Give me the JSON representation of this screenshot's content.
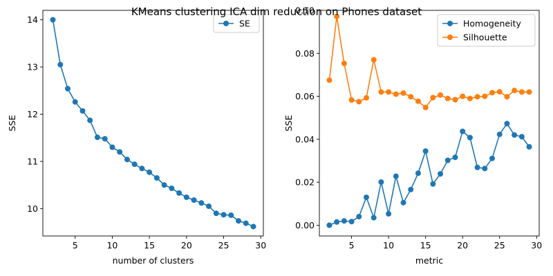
{
  "figure": {
    "title": "KMeans clustering ICA dim reduction on Phones dataset"
  },
  "chart_data": [
    {
      "type": "line",
      "xlabel": "number of clusters",
      "ylabel": "SSE",
      "xlim": [
        0.65,
        30.35
      ],
      "ylim": [
        9.42,
        14.2
      ],
      "xticks": [
        5,
        10,
        15,
        20,
        25,
        30
      ],
      "yticks": [
        10,
        11,
        12,
        13,
        14
      ],
      "legend": "top-right",
      "series": [
        {
          "name": "SE",
          "color": "#1f77b4",
          "marker": "circle",
          "x": [
            2,
            3,
            4,
            5,
            6,
            7,
            8,
            9,
            10,
            11,
            12,
            13,
            14,
            15,
            16,
            17,
            18,
            19,
            20,
            21,
            22,
            23,
            24,
            25,
            26,
            27,
            28,
            29
          ],
          "y": [
            14.0,
            13.05,
            12.54,
            12.26,
            12.07,
            11.87,
            11.51,
            11.48,
            11.3,
            11.2,
            11.04,
            10.94,
            10.85,
            10.77,
            10.65,
            10.5,
            10.43,
            10.33,
            10.24,
            10.18,
            10.12,
            10.05,
            9.9,
            9.87,
            9.86,
            9.74,
            9.69,
            9.62
          ]
        }
      ]
    },
    {
      "type": "line",
      "xlabel": "metric",
      "ylabel": "SSE",
      "xlim": [
        0.65,
        30.35
      ],
      "ylim": [
        -0.005,
        0.1
      ],
      "xticks": [
        5,
        10,
        15,
        20,
        25,
        30
      ],
      "yticks": [
        0.0,
        0.02,
        0.04,
        0.06,
        0.08,
        0.1
      ],
      "legend": "top-right",
      "series": [
        {
          "name": "Homogeneity",
          "color": "#1f77b4",
          "marker": "circle",
          "x": [
            2,
            3,
            4,
            5,
            6,
            7,
            8,
            9,
            10,
            11,
            12,
            13,
            14,
            15,
            16,
            17,
            18,
            19,
            20,
            21,
            22,
            23,
            24,
            25,
            26,
            27,
            28,
            29
          ],
          "y": [
            0.0,
            0.0015,
            0.002,
            0.0017,
            0.004,
            0.013,
            0.0035,
            0.0201,
            0.0053,
            0.0228,
            0.0105,
            0.0166,
            0.0242,
            0.0345,
            0.0192,
            0.0239,
            0.0302,
            0.0316,
            0.0437,
            0.0408,
            0.0269,
            0.0264,
            0.0311,
            0.0423,
            0.0473,
            0.042,
            0.0412,
            0.0365
          ]
        },
        {
          "name": "Silhouette",
          "color": "#ff7f0e",
          "marker": "circle",
          "x": [
            2,
            3,
            4,
            5,
            6,
            7,
            8,
            9,
            10,
            11,
            12,
            13,
            14,
            15,
            16,
            17,
            18,
            19,
            20,
            21,
            22,
            23,
            24,
            25,
            26,
            27,
            28,
            29
          ],
          "y": [
            0.0675,
            0.0972,
            0.0753,
            0.0583,
            0.0575,
            0.0593,
            0.077,
            0.062,
            0.062,
            0.061,
            0.0615,
            0.0598,
            0.0577,
            0.0548,
            0.0594,
            0.0606,
            0.059,
            0.0584,
            0.06,
            0.059,
            0.0598,
            0.06,
            0.0617,
            0.0621,
            0.0598,
            0.0627,
            0.062,
            0.062
          ]
        }
      ]
    }
  ]
}
